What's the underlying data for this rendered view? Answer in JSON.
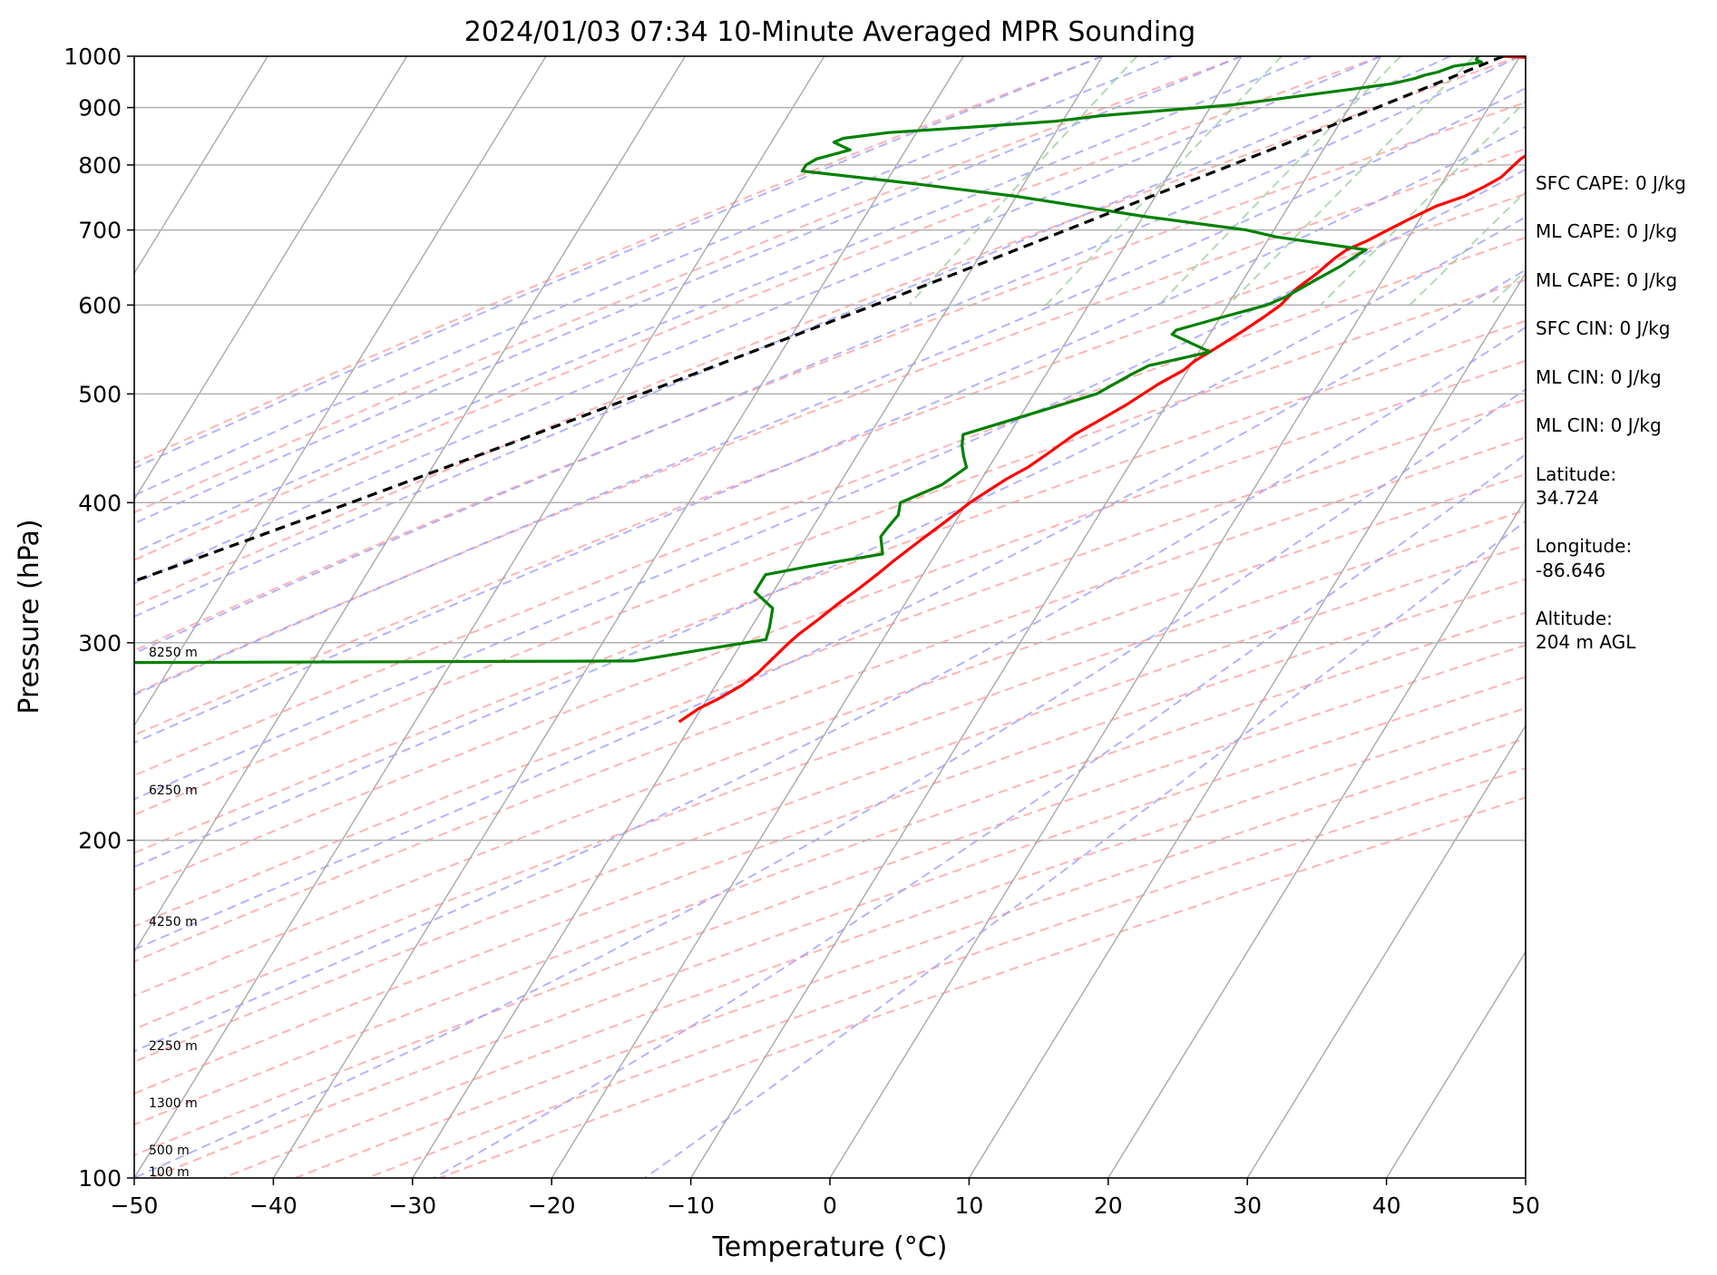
{
  "chart_data": {
    "type": "line",
    "subtype": "skew-t log-p sounding",
    "title": "2024/01/03 07:34 10-Minute Averaged MPR Sounding",
    "xlabel": "Temperature (°C)",
    "ylabel": "Pressure (hPa)",
    "xlim": [
      -50,
      50
    ],
    "ylim": [
      1000,
      100
    ],
    "yscale": "log",
    "grid": true,
    "x_ticks": [
      "−50",
      "−40",
      "−30",
      "−20",
      "−10",
      "0",
      "10",
      "20",
      "30",
      "40",
      "50"
    ],
    "y_ticks": [
      "100",
      "200",
      "300",
      "400",
      "500",
      "600",
      "700",
      "800",
      "900",
      "1000"
    ],
    "series": [
      {
        "color": "#ff0000",
        "points": [
          {
            "t": -1.2,
            "p": 1000
          },
          {
            "t": 2.0,
            "p": 995
          },
          {
            "t": 4.5,
            "p": 985
          },
          {
            "t": 6.5,
            "p": 970
          },
          {
            "t": 7.5,
            "p": 955
          },
          {
            "t": 8.0,
            "p": 940
          },
          {
            "t": 8.3,
            "p": 925
          },
          {
            "t": 8.5,
            "p": 910
          },
          {
            "t": 8.5,
            "p": 895
          },
          {
            "t": 7.9,
            "p": 875
          },
          {
            "t": 7.4,
            "p": 860
          },
          {
            "t": 6.3,
            "p": 840
          },
          {
            "t": 5.2,
            "p": 825
          },
          {
            "t": 4.6,
            "p": 810
          },
          {
            "t": 4.3,
            "p": 795
          },
          {
            "t": 4.0,
            "p": 780
          },
          {
            "t": 3.2,
            "p": 765
          },
          {
            "t": 2.2,
            "p": 750
          },
          {
            "t": 0.6,
            "p": 735
          },
          {
            "t": -0.8,
            "p": 715
          },
          {
            "t": -1.8,
            "p": 700
          },
          {
            "t": -2.8,
            "p": 685
          },
          {
            "t": -3.9,
            "p": 672
          },
          {
            "t": -4.4,
            "p": 660
          },
          {
            "t": -5.0,
            "p": 640
          },
          {
            "t": -5.8,
            "p": 620
          },
          {
            "t": -6.2,
            "p": 600
          },
          {
            "t": -6.9,
            "p": 585
          },
          {
            "t": -7.7,
            "p": 570
          },
          {
            "t": -8.9,
            "p": 550
          },
          {
            "t": -9.9,
            "p": 535
          },
          {
            "t": -10.3,
            "p": 525
          },
          {
            "t": -11.5,
            "p": 510
          },
          {
            "t": -12.8,
            "p": 490
          },
          {
            "t": -14.0,
            "p": 475
          },
          {
            "t": -15.3,
            "p": 460
          },
          {
            "t": -16.2,
            "p": 445
          },
          {
            "t": -17.2,
            "p": 430
          },
          {
            "t": -18.2,
            "p": 420
          },
          {
            "t": -19.0,
            "p": 410
          },
          {
            "t": -19.8,
            "p": 400
          },
          {
            "t": -20.7,
            "p": 385
          },
          {
            "t": -21.7,
            "p": 370
          },
          {
            "t": -22.7,
            "p": 355
          },
          {
            "t": -23.3,
            "p": 345
          },
          {
            "t": -24.0,
            "p": 335
          },
          {
            "t": -24.8,
            "p": 325
          },
          {
            "t": -25.5,
            "p": 315
          },
          {
            "t": -26.3,
            "p": 305
          },
          {
            "t": -26.6,
            "p": 300
          },
          {
            "t": -27.0,
            "p": 292
          },
          {
            "t": -27.5,
            "p": 282
          },
          {
            "t": -28.1,
            "p": 275
          },
          {
            "t": -29.1,
            "p": 268
          },
          {
            "t": -30.2,
            "p": 262
          },
          {
            "t": -31.0,
            "p": 255
          }
        ]
      },
      {
        "color": "#008000",
        "points": [
          {
            "t": -3.0,
            "p": 1000
          },
          {
            "t": -3.0,
            "p": 993
          },
          {
            "t": -2.5,
            "p": 988
          },
          {
            "t": -4.3,
            "p": 980
          },
          {
            "t": -5.2,
            "p": 968
          },
          {
            "t": -6.0,
            "p": 962
          },
          {
            "t": -6.6,
            "p": 955
          },
          {
            "t": -8.0,
            "p": 945
          },
          {
            "t": -10.5,
            "p": 935
          },
          {
            "t": -14.5,
            "p": 920
          },
          {
            "t": -18.5,
            "p": 905
          },
          {
            "t": -23.0,
            "p": 895
          },
          {
            "t": -27.5,
            "p": 885
          },
          {
            "t": -30.5,
            "p": 875
          },
          {
            "t": -36.0,
            "p": 865
          },
          {
            "t": -42.0,
            "p": 855
          },
          {
            "t": -45.0,
            "p": 845
          },
          {
            "t": -45.5,
            "p": 838
          },
          {
            "t": -44.0,
            "p": 825
          },
          {
            "t": -46.0,
            "p": 810
          },
          {
            "t": -46.5,
            "p": 800
          },
          {
            "t": -46.5,
            "p": 790
          },
          {
            "t": -38.0,
            "p": 770
          },
          {
            "t": -30.0,
            "p": 750
          },
          {
            "t": -20.0,
            "p": 720
          },
          {
            "t": -12.0,
            "p": 700
          },
          {
            "t": -9.5,
            "p": 690
          },
          {
            "t": -2.5,
            "p": 672
          },
          {
            "t": -2.9,
            "p": 665
          },
          {
            "t": -3.6,
            "p": 650
          },
          {
            "t": -4.9,
            "p": 630
          },
          {
            "t": -6.2,
            "p": 610
          },
          {
            "t": -7.2,
            "p": 600
          },
          {
            "t": -9.9,
            "p": 585
          },
          {
            "t": -12.6,
            "p": 570
          },
          {
            "t": -12.7,
            "p": 565
          },
          {
            "t": -9.2,
            "p": 545
          },
          {
            "t": -13.0,
            "p": 530
          },
          {
            "t": -13.9,
            "p": 520
          },
          {
            "t": -15.5,
            "p": 500
          },
          {
            "t": -19.3,
            "p": 480
          },
          {
            "t": -23.3,
            "p": 460
          },
          {
            "t": -22.9,
            "p": 450
          },
          {
            "t": -22.3,
            "p": 440
          },
          {
            "t": -21.6,
            "p": 430
          },
          {
            "t": -22.6,
            "p": 415
          },
          {
            "t": -24.8,
            "p": 400
          },
          {
            "t": -24.4,
            "p": 390
          },
          {
            "t": -24.6,
            "p": 380
          },
          {
            "t": -24.7,
            "p": 373
          },
          {
            "t": -23.8,
            "p": 360
          },
          {
            "t": -28.0,
            "p": 352
          },
          {
            "t": -31.3,
            "p": 345
          },
          {
            "t": -31.3,
            "p": 333
          },
          {
            "t": -29.3,
            "p": 322
          },
          {
            "t": -28.7,
            "p": 310
          },
          {
            "t": -28.4,
            "p": 302
          },
          {
            "t": -37.0,
            "p": 289
          },
          {
            "t": -54.5,
            "p": 288.5
          },
          {
            "t": -75.0,
            "p": 288
          }
        ]
      },
      {
        "color": "#000000",
        "dashed": true,
        "points": [
          {
            "t": -1.2,
            "p": 1000
          },
          {
            "t": -4.5,
            "p": 950
          },
          {
            "t": -8.0,
            "p": 900
          },
          {
            "t": -11.8,
            "p": 850
          },
          {
            "t": -15.9,
            "p": 800
          },
          {
            "t": -20.3,
            "p": 750
          },
          {
            "t": -24.9,
            "p": 700
          },
          {
            "t": -29.9,
            "p": 650
          },
          {
            "t": -35.4,
            "p": 600
          },
          {
            "t": -41.5,
            "p": 550
          },
          {
            "t": -48.2,
            "p": 500
          },
          {
            "t": -55.7,
            "p": 450
          },
          {
            "t": -64.3,
            "p": 400
          },
          {
            "t": -74.3,
            "p": 350
          },
          {
            "t": -86.0,
            "p": 300
          }
        ]
      }
    ],
    "height_labels": [
      "8250 m",
      "6250 m",
      "4250 m",
      "2250 m",
      "1300 m",
      "500 m",
      "100 m"
    ],
    "side_info": [
      "SFC CAPE: 0 J/kg",
      "ML CAPE: 0 J/kg",
      "ML CAPE: 0 J/kg",
      "SFC CIN: 0 J/kg",
      "ML CIN: 0 J/kg",
      "ML CIN: 0 J/kg"
    ],
    "location": {
      "latitude_label": "Latitude:",
      "latitude": "34.724",
      "longitude_label": "Longitude:",
      "longitude": "-86.646",
      "altitude_label": "Altitude:",
      "altitude": "204 m AGL"
    },
    "background_line_colors": {
      "isotherms": "#a9a9a9",
      "dry_adiabats": "#ff9999",
      "moist_adiabats": "#9999ff",
      "mixing_ratio": "#99cc99"
    }
  }
}
